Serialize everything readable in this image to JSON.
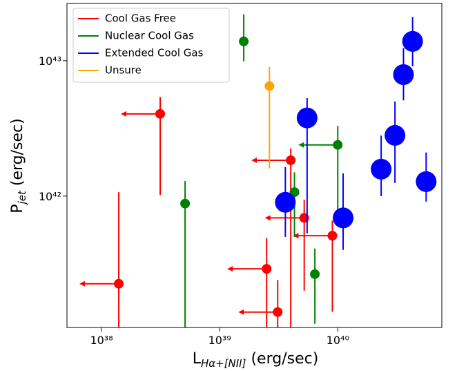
{
  "chart_data": {
    "type": "scatter",
    "xlabel": {
      "main": "L",
      "sub": "Hα+[NII]",
      "unit": " (erg/sec)"
    },
    "ylabel": {
      "main": "P",
      "sub": "jet",
      "unit": " (erg/sec)"
    },
    "xscale": "log",
    "yscale": "log",
    "xlim": [
      5.1e+37,
      7.6e+40
    ],
    "ylim": [
      1.07e+41,
      2.65e+43
    ],
    "xticks": [
      {
        "value": 1e+38,
        "label": "10³⁸"
      },
      {
        "value": 1e+39,
        "label": "10³⁹"
      },
      {
        "value": 1e+40,
        "label": "10⁴⁰"
      }
    ],
    "yticks": [
      {
        "value": 1e+42,
        "label": "10⁴²"
      },
      {
        "value": 1e+43,
        "label": "10⁴³"
      }
    ],
    "legend": "upper left",
    "series": [
      {
        "name": "Cool Gas Free",
        "color": "#ff0000",
        "x": [
          3.14e+38,
          1.4e+38,
          4e+39,
          5.2e+39,
          9e+39,
          2.5e+39,
          3.1e+39
        ],
        "values": [
          4.05e+42,
          2.25e+41,
          1.84e+42,
          6.9e+41,
          5.1e+41,
          2.9e+41,
          1.39e+41
        ],
        "y_lower": [
          1.02e+42,
          5e+40,
          5e+40,
          2e+41,
          1.4e+41,
          1e+41,
          5e+40
        ],
        "y_upper": [
          5.4e+42,
          1.07e+42,
          2.25e+42,
          9.4e+41,
          6.6e+41,
          4.9e+41,
          2.4e+41
        ],
        "x_upper_limit": [
          true,
          true,
          true,
          true,
          true,
          true,
          true
        ]
      },
      {
        "name": "Nuclear Cool Gas",
        "color": "#008000",
        "x": [
          1.6e+39,
          5.1e+38,
          4.3e+39,
          1e+40,
          6.4e+39
        ],
        "values": [
          1.39e+43,
          8.8e+41,
          1.07e+42,
          2.39e+42,
          2.65e+41
        ],
        "y_lower": [
          9.9e+42,
          5e+40,
          5e+41,
          7.6e+41,
          1.14e+41
        ],
        "y_upper": [
          2.2e+43,
          1.29e+42,
          1.5e+42,
          3.3e+42,
          4.1e+41
        ],
        "x_upper_limit": [
          false,
          false,
          false,
          true,
          false
        ]
      },
      {
        "name": "Extended Cool Gas",
        "color": "#0000ff",
        "x": [
          4.3e+40,
          3.6e+40,
          3.05e+40,
          2.33e+40,
          5.6e+40,
          5.5e+39,
          3.6e+39,
          1.11e+40
        ],
        "values": [
          1.39e+43,
          7.9e+42,
          2.81e+42,
          1.58e+42,
          1.28e+42,
          3.78e+42,
          9e+41,
          6.9e+41
        ],
        "y_lower": [
          9.1e+42,
          5.1e+42,
          1.25e+42,
          1e+42,
          9.1e+41,
          5.3e+41,
          5e+41,
          4e+41
        ],
        "y_upper": [
          2.1e+43,
          1.24e+43,
          5e+42,
          2.8e+42,
          2.1e+42,
          5.3e+42,
          1.64e+42,
          1.47e+42
        ],
        "x_upper_limit": [
          false,
          false,
          false,
          false,
          false,
          false,
          false,
          false
        ]
      },
      {
        "name": "Unsure",
        "color": "#ffa500",
        "x": [
          2.64e+39
        ],
        "values": [
          6.5e+42
        ],
        "y_lower": [
          1.6e+42
        ],
        "y_upper": [
          9e+42
        ],
        "x_upper_limit": [
          false
        ]
      }
    ]
  }
}
